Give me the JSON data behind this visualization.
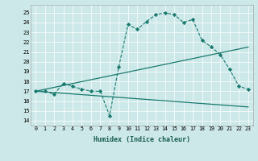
{
  "xlabel": "Humidex (Indice chaleur)",
  "bg_color": "#cce8e8",
  "line_color": "#1a7a6e",
  "xlim": [
    -0.5,
    23.5
  ],
  "ylim": [
    13.5,
    25.8
  ],
  "xticks": [
    0,
    1,
    2,
    3,
    4,
    5,
    6,
    7,
    8,
    9,
    10,
    11,
    12,
    13,
    14,
    15,
    16,
    17,
    18,
    19,
    20,
    21,
    22,
    23
  ],
  "yticks": [
    14,
    15,
    16,
    17,
    18,
    19,
    20,
    21,
    22,
    23,
    24,
    25
  ],
  "curve1_x": [
    0,
    1,
    2,
    3,
    4,
    5,
    6,
    7,
    8,
    9,
    10,
    11,
    12,
    13,
    14,
    15,
    16,
    17,
    18,
    19,
    20,
    21,
    22,
    23
  ],
  "curve1_y": [
    17.0,
    17.0,
    16.7,
    17.8,
    17.5,
    17.2,
    17.0,
    17.0,
    14.5,
    19.5,
    23.8,
    23.3,
    24.1,
    24.8,
    25.0,
    24.8,
    24.0,
    24.3,
    22.2,
    21.5,
    20.7,
    19.2,
    17.5,
    17.2
  ],
  "curve2_x": [
    0,
    23
  ],
  "curve2_y": [
    17.0,
    21.5
  ],
  "curve3_x": [
    0,
    23
  ],
  "curve3_y": [
    17.0,
    15.4
  ],
  "xtick_labels": [
    "0",
    "1",
    "2",
    "3",
    "4",
    "5",
    "6",
    "7",
    "8",
    "9",
    "10",
    "11",
    "12",
    "13",
    "14",
    "15",
    "16",
    "17",
    "18",
    "19",
    "20",
    "21",
    "22",
    "23"
  ],
  "ytick_labels": [
    "14",
    "15",
    "16",
    "17",
    "18",
    "19",
    "20",
    "21",
    "22",
    "23",
    "24",
    "25"
  ]
}
